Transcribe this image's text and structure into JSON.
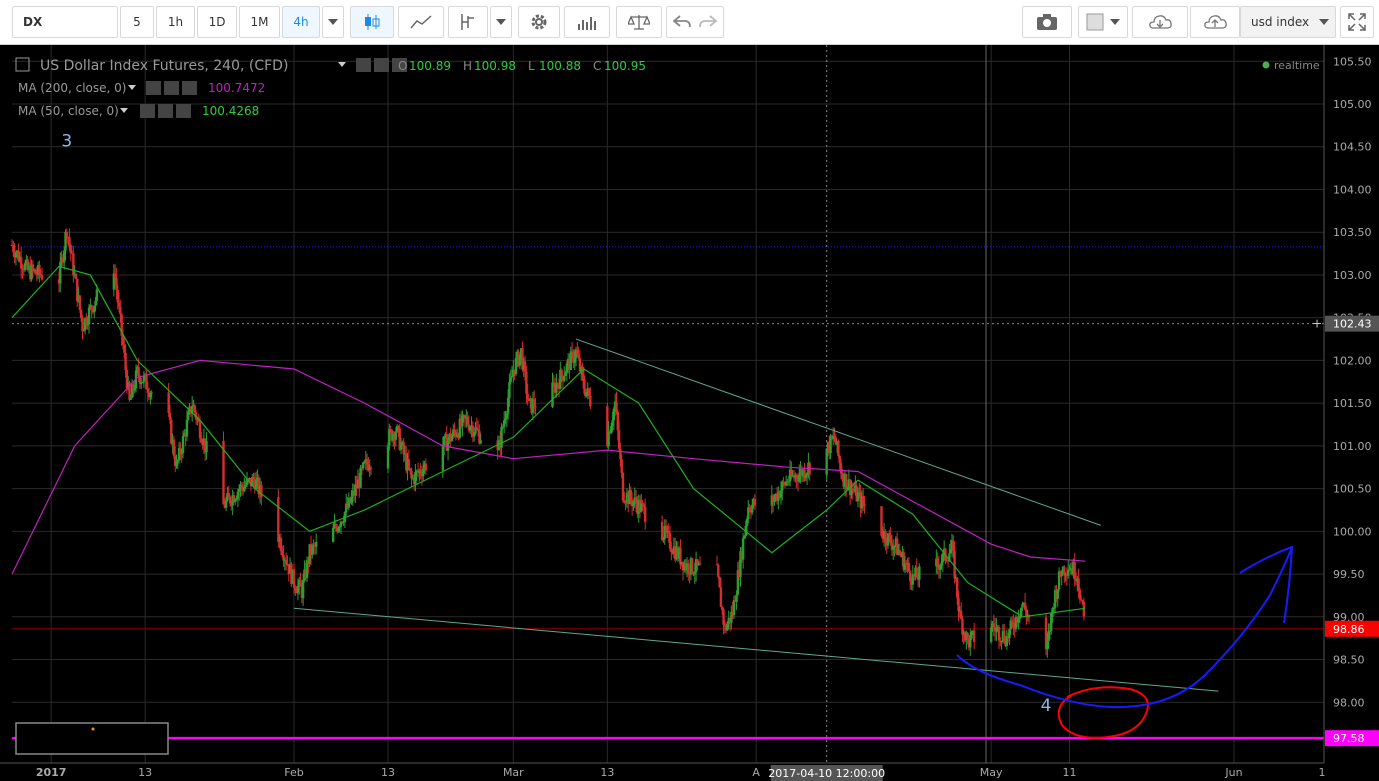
{
  "toolbar": {
    "symbol": "DX",
    "intervals": [
      "5",
      "1h",
      "1D",
      "1M",
      "4h"
    ],
    "active_interval": "4h",
    "search_value": "usd index"
  },
  "legend": {
    "title": "US Dollar Index Futures, 240, (CFD)",
    "ohlc": [
      {
        "k": "O",
        "v": "100.89"
      },
      {
        "k": "H",
        "v": "100.98"
      },
      {
        "k": "L",
        "v": "100.88"
      },
      {
        "k": "C",
        "v": "100.95"
      }
    ],
    "ma200_label": "MA (200, close, 0)",
    "ma200_value": "100.7472",
    "ma50_label": "MA (50, close, 0)",
    "ma50_value": "100.4268",
    "status": "realtime"
  },
  "annotations": {
    "wave3": "3",
    "wave4": "4"
  },
  "colors": {
    "up": "#2e9e2e",
    "down": "#d62d2d",
    "ma200": "#c020c0",
    "ma50": "#20b020",
    "trendline": "#5ea88f",
    "support_line": "#ff00ff",
    "blue_level": "#2020ff",
    "price_tag": "#ff0000",
    "drawing_red": "#ff0000",
    "drawing_blue": "#1a1aff"
  },
  "chart_data": {
    "type": "candlestick",
    "title": "US Dollar Index Futures, 240, (CFD)",
    "y_axis": {
      "min": 97.5,
      "max": 105.55,
      "ticks": [
        "105.50",
        "105.00",
        "104.50",
        "104.00",
        "103.50",
        "103.00",
        "102.50",
        "102.00",
        "101.50",
        "101.00",
        "100.50",
        "100.00",
        "99.50",
        "99.00",
        "98.50",
        "98.00"
      ]
    },
    "x_axis": {
      "range": [
        "2016-12-27",
        "2017-06-01"
      ],
      "labels": [
        {
          "date": "2017-01-01",
          "text": "2017"
        },
        {
          "date": "2017-01-13",
          "text": "13"
        },
        {
          "date": "2017-02-01",
          "text": "Feb"
        },
        {
          "date": "2017-02-13",
          "text": "13"
        },
        {
          "date": "2017-03-01",
          "text": "Mar"
        },
        {
          "date": "2017-03-13",
          "text": "13"
        },
        {
          "date": "2017-04-01",
          "text": "A"
        },
        {
          "date": "2017-05-01",
          "text": "May"
        },
        {
          "date": "2017-05-11",
          "text": "11"
        },
        {
          "date": "2017-06-01",
          "text": "Jun"
        }
      ],
      "crosshair_label": "2017-04-10 12:00:00"
    },
    "price_path": [
      {
        "date": "2016-12-27",
        "price": 103.35
      },
      {
        "date": "2016-12-29",
        "price": 103.05
      },
      {
        "date": "2017-01-02",
        "price": 102.95
      },
      {
        "date": "2017-01-03",
        "price": 103.55
      },
      {
        "date": "2017-01-05",
        "price": 102.4
      },
      {
        "date": "2017-01-06",
        "price": 102.6
      },
      {
        "date": "2017-01-09",
        "price": 103.1
      },
      {
        "date": "2017-01-11",
        "price": 101.5
      },
      {
        "date": "2017-01-12",
        "price": 101.85
      },
      {
        "date": "2017-01-13",
        "price": 101.75
      },
      {
        "date": "2017-01-16",
        "price": 101.3
      },
      {
        "date": "2017-01-17",
        "price": 100.75
      },
      {
        "date": "2017-01-19",
        "price": 101.5
      },
      {
        "date": "2017-01-23",
        "price": 100.3
      },
      {
        "date": "2017-01-25",
        "price": 100.5
      },
      {
        "date": "2017-01-27",
        "price": 100.6
      },
      {
        "date": "2017-01-30",
        "price": 99.95
      },
      {
        "date": "2017-02-01",
        "price": 99.4
      },
      {
        "date": "2017-02-02",
        "price": 99.3
      },
      {
        "date": "2017-02-03",
        "price": 99.75
      },
      {
        "date": "2017-02-06",
        "price": 100.0
      },
      {
        "date": "2017-02-08",
        "price": 100.3
      },
      {
        "date": "2017-02-10",
        "price": 100.75
      },
      {
        "date": "2017-02-14",
        "price": 101.2
      },
      {
        "date": "2017-02-16",
        "price": 100.6
      },
      {
        "date": "2017-02-20",
        "price": 101.0
      },
      {
        "date": "2017-02-23",
        "price": 101.3
      },
      {
        "date": "2017-02-27",
        "price": 100.9
      },
      {
        "date": "2017-03-01",
        "price": 101.9
      },
      {
        "date": "2017-03-02",
        "price": 102.1
      },
      {
        "date": "2017-03-03",
        "price": 101.45
      },
      {
        "date": "2017-03-06",
        "price": 101.65
      },
      {
        "date": "2017-03-09",
        "price": 102.1
      },
      {
        "date": "2017-03-10",
        "price": 101.7
      },
      {
        "date": "2017-03-13",
        "price": 101.1
      },
      {
        "date": "2017-03-14",
        "price": 101.5
      },
      {
        "date": "2017-03-15",
        "price": 100.45
      },
      {
        "date": "2017-03-17",
        "price": 100.3
      },
      {
        "date": "2017-03-20",
        "price": 100.0
      },
      {
        "date": "2017-03-23",
        "price": 99.6
      },
      {
        "date": "2017-03-27",
        "price": 99.5
      },
      {
        "date": "2017-03-28",
        "price": 98.85
      },
      {
        "date": "2017-03-29",
        "price": 99.05
      },
      {
        "date": "2017-03-31",
        "price": 100.3
      },
      {
        "date": "2017-04-03",
        "price": 100.35
      },
      {
        "date": "2017-04-05",
        "price": 100.6
      },
      {
        "date": "2017-04-07",
        "price": 100.7
      },
      {
        "date": "2017-04-10",
        "price": 100.95
      },
      {
        "date": "2017-04-11",
        "price": 101.1
      },
      {
        "date": "2017-04-12",
        "price": 100.65
      },
      {
        "date": "2017-04-14",
        "price": 100.4
      },
      {
        "date": "2017-04-17",
        "price": 100.0
      },
      {
        "date": "2017-04-19",
        "price": 99.8
      },
      {
        "date": "2017-04-21",
        "price": 99.45
      },
      {
        "date": "2017-04-24",
        "price": 99.6
      },
      {
        "date": "2017-04-26",
        "price": 99.8
      },
      {
        "date": "2017-04-27",
        "price": 99.0
      },
      {
        "date": "2017-04-28",
        "price": 98.7
      },
      {
        "date": "2017-05-01",
        "price": 98.9
      },
      {
        "date": "2017-05-03",
        "price": 98.75
      },
      {
        "date": "2017-05-05",
        "price": 99.15
      },
      {
        "date": "2017-05-08",
        "price": 98.55
      },
      {
        "date": "2017-05-09",
        "price": 99.2
      },
      {
        "date": "2017-05-10",
        "price": 99.55
      },
      {
        "date": "2017-05-11",
        "price": 99.6
      },
      {
        "date": "2017-05-12",
        "price": 99.5
      },
      {
        "date": "2017-05-13",
        "price": 98.85
      }
    ],
    "ma50_path": [
      {
        "date": "2016-12-27",
        "price": 102.5
      },
      {
        "date": "2017-01-02",
        "price": 103.1
      },
      {
        "date": "2017-01-06",
        "price": 103.0
      },
      {
        "date": "2017-01-12",
        "price": 102.0
      },
      {
        "date": "2017-01-20",
        "price": 101.3
      },
      {
        "date": "2017-01-27",
        "price": 100.5
      },
      {
        "date": "2017-02-03",
        "price": 100.0
      },
      {
        "date": "2017-02-10",
        "price": 100.25
      },
      {
        "date": "2017-02-20",
        "price": 100.7
      },
      {
        "date": "2017-03-01",
        "price": 101.1
      },
      {
        "date": "2017-03-10",
        "price": 101.9
      },
      {
        "date": "2017-03-17",
        "price": 101.5
      },
      {
        "date": "2017-03-24",
        "price": 100.5
      },
      {
        "date": "2017-04-03",
        "price": 99.75
      },
      {
        "date": "2017-04-10",
        "price": 100.25
      },
      {
        "date": "2017-04-14",
        "price": 100.6
      },
      {
        "date": "2017-04-21",
        "price": 100.2
      },
      {
        "date": "2017-04-28",
        "price": 99.4
      },
      {
        "date": "2017-05-05",
        "price": 99.0
      },
      {
        "date": "2017-05-13",
        "price": 99.1
      }
    ],
    "ma200_path": [
      {
        "date": "2016-12-27",
        "price": 99.5
      },
      {
        "date": "2017-01-04",
        "price": 101.0
      },
      {
        "date": "2017-01-12",
        "price": 101.8
      },
      {
        "date": "2017-01-20",
        "price": 102.0
      },
      {
        "date": "2017-02-01",
        "price": 101.9
      },
      {
        "date": "2017-02-10",
        "price": 101.5
      },
      {
        "date": "2017-02-20",
        "price": 101.0
      },
      {
        "date": "2017-03-01",
        "price": 100.85
      },
      {
        "date": "2017-03-13",
        "price": 100.95
      },
      {
        "date": "2017-03-24",
        "price": 100.85
      },
      {
        "date": "2017-04-05",
        "price": 100.75
      },
      {
        "date": "2017-04-14",
        "price": 100.7
      },
      {
        "date": "2017-04-24",
        "price": 100.2
      },
      {
        "date": "2017-05-01",
        "price": 99.85
      },
      {
        "date": "2017-05-06",
        "price": 99.7
      },
      {
        "date": "2017-05-13",
        "price": 99.65
      }
    ],
    "trendlines": [
      {
        "name": "resistance",
        "from": {
          "date": "2017-03-09",
          "price": 102.25
        },
        "to": {
          "date": "2017-05-15",
          "price": 100.07
        }
      },
      {
        "name": "support",
        "from": {
          "date": "2017-02-01",
          "price": 99.1
        },
        "to": {
          "date": "2017-05-30",
          "price": 98.13
        }
      }
    ],
    "levels": [
      {
        "price": 103.33,
        "style": "dotted-blue"
      },
      {
        "price": 102.43,
        "style": "crosshair",
        "label": "102.43"
      },
      {
        "price": 98.86,
        "style": "current",
        "label": "98.86"
      },
      {
        "price": 97.58,
        "style": "support",
        "label": "97.58"
      }
    ],
    "annotations": [
      {
        "text": "3",
        "date": "2017-01-03",
        "price": 104.5
      },
      {
        "text": "4",
        "date": "2017-05-08",
        "price": 97.9
      }
    ]
  }
}
